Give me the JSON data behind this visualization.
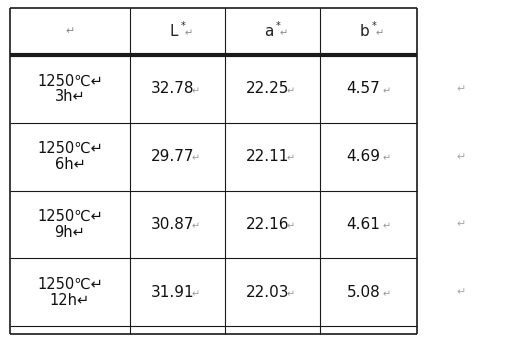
{
  "rows": [
    {
      "label_line1": "1250℃↵",
      "label_line2": "3h↵",
      "L": "32.78↵",
      "a": "22.25↵",
      "b": "4.57↵"
    },
    {
      "label_line1": "1250℃↵",
      "label_line2": "6h↵",
      "L": "29.77↵",
      "a": "22.11↵",
      "b": "4.69↵"
    },
    {
      "label_line1": "1250℃↵",
      "label_line2": "9h↵",
      "L": "30.87↵",
      "a": "22.16↵",
      "b": "4.61↵"
    },
    {
      "label_line1": "1250℃↵",
      "label_line2": "12h↵",
      "L": "31.91↵",
      "a": "22.03↵",
      "b": "5.08↵"
    }
  ],
  "header_col0": "↵",
  "header_L": "L*↵",
  "header_a": "a*↵",
  "header_b": "b*↵",
  "right_col_symbol": "↵",
  "background_color": "#ffffff",
  "border_color": "#1a1a1a",
  "font_size_header": 11,
  "font_size_data": 11,
  "font_size_label": 10.5,
  "font_size_small": 8
}
